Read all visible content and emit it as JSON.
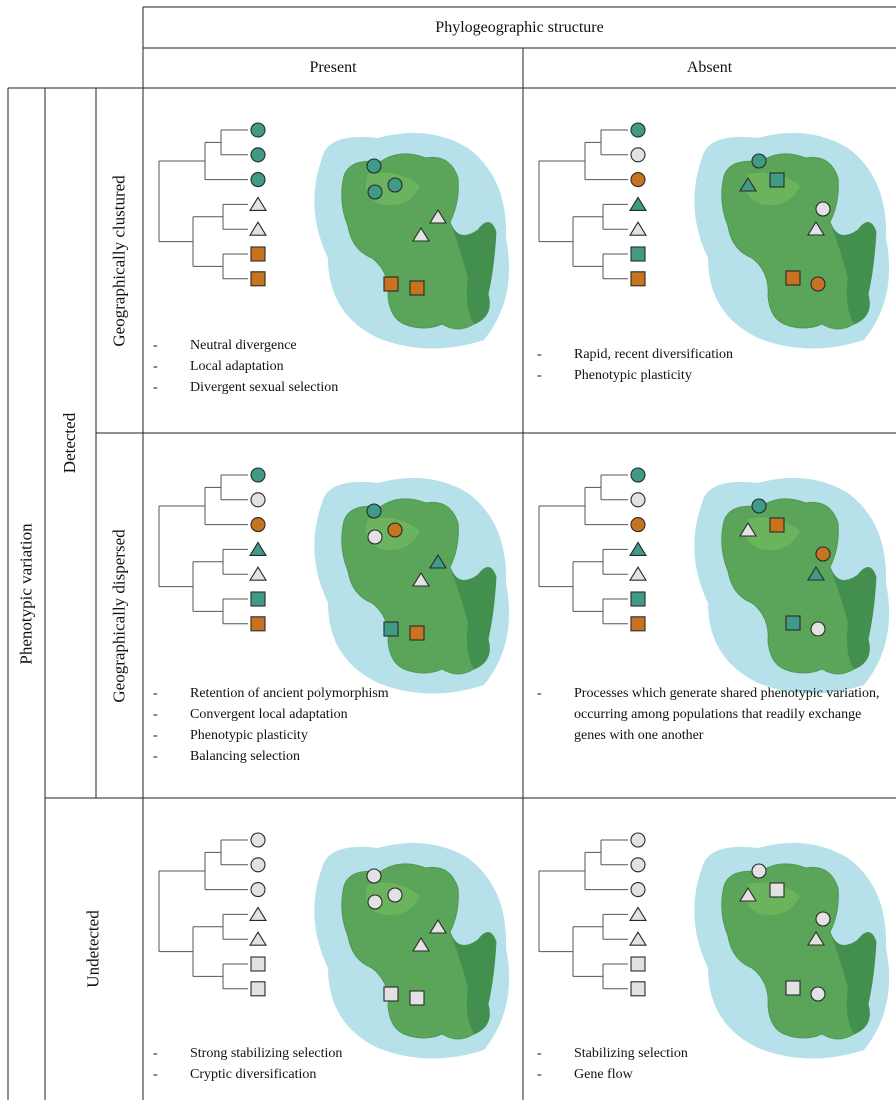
{
  "headers": {
    "top": "Phylogeographic structure",
    "present": "Present",
    "absent": "Absent",
    "phenotypic": "Phenotypic variation",
    "detected": "Detected",
    "undetected": "Undetected",
    "clustured": "Geographically clustured",
    "dispersed": "Geographically dispersed"
  },
  "colors": {
    "teal": "#3f9a86",
    "grey": "#e2e2e2",
    "orange": "#c8731f",
    "stroke": "#2a2a2a",
    "land": "#5aa55a",
    "land_dark": "#3d8a4b",
    "water": "#a9dce8"
  },
  "cells": [
    {
      "id": "clustured-present",
      "markers": [
        [
          "circle",
          "teal"
        ],
        [
          "circle",
          "teal"
        ],
        [
          "circle",
          "teal"
        ],
        [
          "triangle",
          "grey"
        ],
        [
          "triangle",
          "grey"
        ],
        [
          "square",
          "orange"
        ],
        [
          "square",
          "orange"
        ]
      ],
      "map": [
        [
          "circle",
          "teal"
        ],
        [
          "circle",
          "teal"
        ],
        [
          "circle",
          "teal"
        ],
        [
          "triangle",
          "grey"
        ],
        [
          "triangle",
          "grey"
        ],
        [
          "square",
          "orange"
        ],
        [
          "square",
          "orange"
        ]
      ],
      "processes": [
        "Neutral divergence",
        "Local adaptation",
        "Divergent sexual selection"
      ]
    },
    {
      "id": "clustured-absent",
      "markers": [
        [
          "circle",
          "teal"
        ],
        [
          "circle",
          "grey"
        ],
        [
          "circle",
          "orange"
        ],
        [
          "triangle",
          "teal"
        ],
        [
          "triangle",
          "grey"
        ],
        [
          "square",
          "teal"
        ],
        [
          "square",
          "orange"
        ]
      ],
      "map": [
        [
          "circle",
          "teal"
        ],
        [
          "triangle",
          "teal"
        ],
        [
          "square",
          "teal"
        ],
        [
          "circle",
          "grey"
        ],
        [
          "triangle",
          "grey"
        ],
        [
          "square",
          "orange"
        ],
        [
          "circle",
          "orange"
        ]
      ],
      "processes": [
        "Rapid, recent diversification",
        "Phenotypic plasticity"
      ]
    },
    {
      "id": "dispersed-present",
      "markers": [
        [
          "circle",
          "teal"
        ],
        [
          "circle",
          "grey"
        ],
        [
          "circle",
          "orange"
        ],
        [
          "triangle",
          "teal"
        ],
        [
          "triangle",
          "grey"
        ],
        [
          "square",
          "teal"
        ],
        [
          "square",
          "orange"
        ]
      ],
      "map": [
        [
          "circle",
          "teal"
        ],
        [
          "circle",
          "grey"
        ],
        [
          "circle",
          "orange"
        ],
        [
          "triangle",
          "teal"
        ],
        [
          "triangle",
          "grey"
        ],
        [
          "square",
          "teal"
        ],
        [
          "square",
          "orange"
        ]
      ],
      "processes": [
        "Retention of ancient polymorphism",
        "Convergent local adaptation",
        "Phenotypic plasticity",
        "Balancing selection"
      ]
    },
    {
      "id": "dispersed-absent",
      "markers": [
        [
          "circle",
          "teal"
        ],
        [
          "circle",
          "grey"
        ],
        [
          "circle",
          "orange"
        ],
        [
          "triangle",
          "teal"
        ],
        [
          "triangle",
          "grey"
        ],
        [
          "square",
          "teal"
        ],
        [
          "square",
          "orange"
        ]
      ],
      "map": [
        [
          "circle",
          "teal"
        ],
        [
          "triangle",
          "grey"
        ],
        [
          "square",
          "orange"
        ],
        [
          "circle",
          "orange"
        ],
        [
          "triangle",
          "teal"
        ],
        [
          "square",
          "teal"
        ],
        [
          "circle",
          "grey"
        ]
      ],
      "processes": [
        "Processes which generate shared phenotypic variation, occurring among populations that readily exchange genes with one another"
      ]
    },
    {
      "id": "undetected-present",
      "markers": [
        [
          "circle",
          "grey"
        ],
        [
          "circle",
          "grey"
        ],
        [
          "circle",
          "grey"
        ],
        [
          "triangle",
          "grey"
        ],
        [
          "triangle",
          "grey"
        ],
        [
          "square",
          "grey"
        ],
        [
          "square",
          "grey"
        ]
      ],
      "map": [
        [
          "circle",
          "grey"
        ],
        [
          "circle",
          "grey"
        ],
        [
          "circle",
          "grey"
        ],
        [
          "triangle",
          "grey"
        ],
        [
          "triangle",
          "grey"
        ],
        [
          "square",
          "grey"
        ],
        [
          "square",
          "grey"
        ]
      ],
      "processes": [
        "Strong stabilizing selection",
        "Cryptic diversification"
      ]
    },
    {
      "id": "undetected-absent",
      "markers": [
        [
          "circle",
          "grey"
        ],
        [
          "circle",
          "grey"
        ],
        [
          "circle",
          "grey"
        ],
        [
          "triangle",
          "grey"
        ],
        [
          "triangle",
          "grey"
        ],
        [
          "square",
          "grey"
        ],
        [
          "square",
          "grey"
        ]
      ],
      "map": [
        [
          "circle",
          "grey"
        ],
        [
          "triangle",
          "grey"
        ],
        [
          "square",
          "grey"
        ],
        [
          "circle",
          "grey"
        ],
        [
          "triangle",
          "grey"
        ],
        [
          "square",
          "grey"
        ],
        [
          "circle",
          "grey"
        ]
      ],
      "processes": [
        "Stabilizing selection",
        "Gene flow"
      ]
    }
  ]
}
